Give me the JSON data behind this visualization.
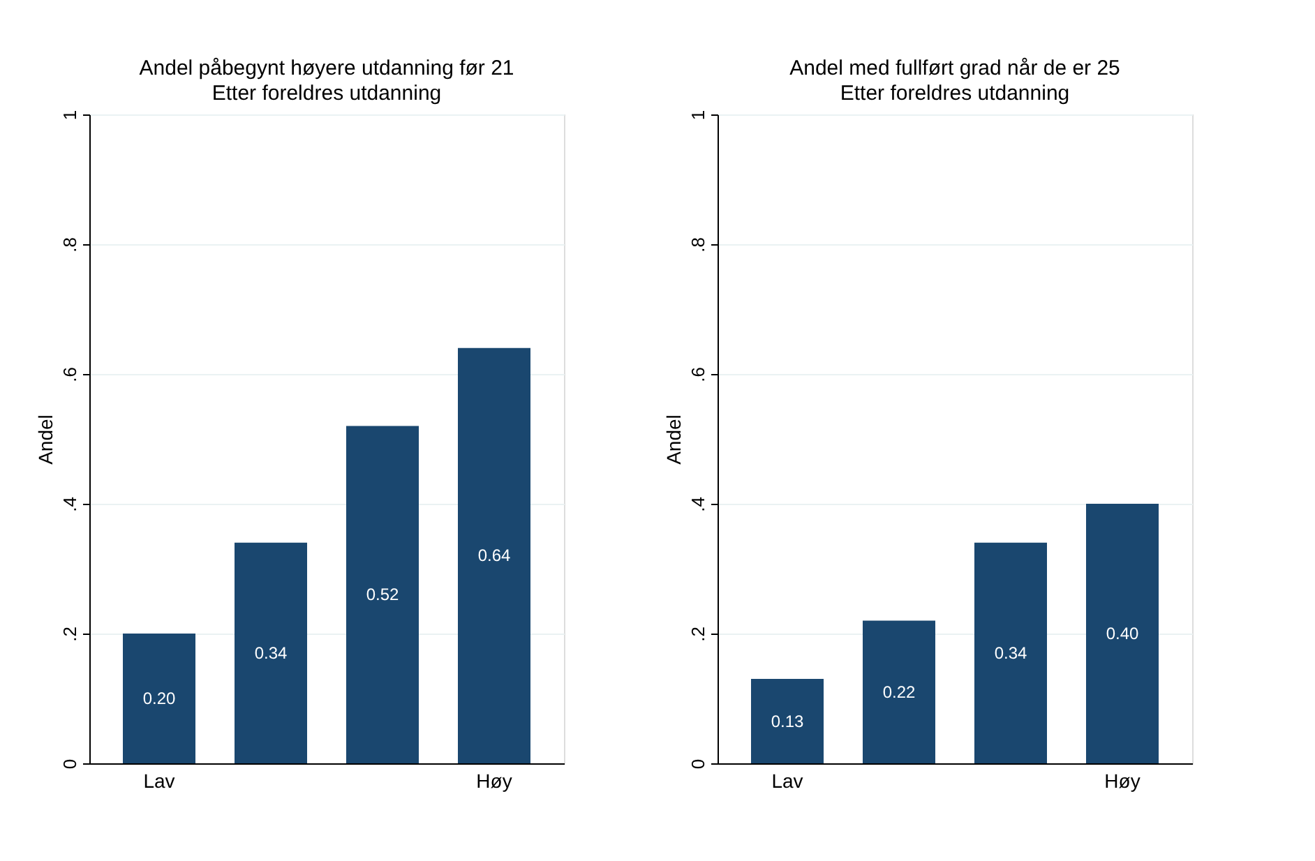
{
  "chart_data": [
    {
      "type": "bar",
      "title": "Andel påbegynt høyere utdanning før 21",
      "subtitle": "Etter foreldres utdanning",
      "ylabel": "Andel",
      "categories": [
        "Lav",
        null,
        null,
        "Høy"
      ],
      "values": [
        0.2,
        0.34,
        0.52,
        0.64
      ],
      "value_labels": [
        "0.20",
        "0.34",
        "0.52",
        "0.64"
      ],
      "color": "#1a476f",
      "ylim": [
        0,
        1
      ],
      "yticks": [
        0,
        {
          "value": 0.2,
          "label": ".2"
        },
        {
          "value": 0.4,
          "label": ".4"
        },
        {
          "value": 0.6,
          "label": ".6"
        },
        {
          "value": 0.8,
          "label": ".8"
        },
        1
      ],
      "grid": "y"
    },
    {
      "type": "bar",
      "title": "Andel med fullført grad når de er 25",
      "subtitle": "Etter foreldres utdanning",
      "ylabel": "Andel",
      "categories": [
        "Lav",
        null,
        null,
        "Høy"
      ],
      "values": [
        0.13,
        0.22,
        0.34,
        0.4
      ],
      "value_labels": [
        "0.13",
        "0.22",
        "0.34",
        "0.40"
      ],
      "color": "#1a476f",
      "ylim": [
        0,
        1
      ],
      "yticks": [
        0,
        {
          "value": 0.2,
          "label": ".2"
        },
        {
          "value": 0.4,
          "label": ".4"
        },
        {
          "value": 0.6,
          "label": ".6"
        },
        {
          "value": 0.8,
          "label": ".8"
        },
        1
      ],
      "grid": "y"
    }
  ]
}
